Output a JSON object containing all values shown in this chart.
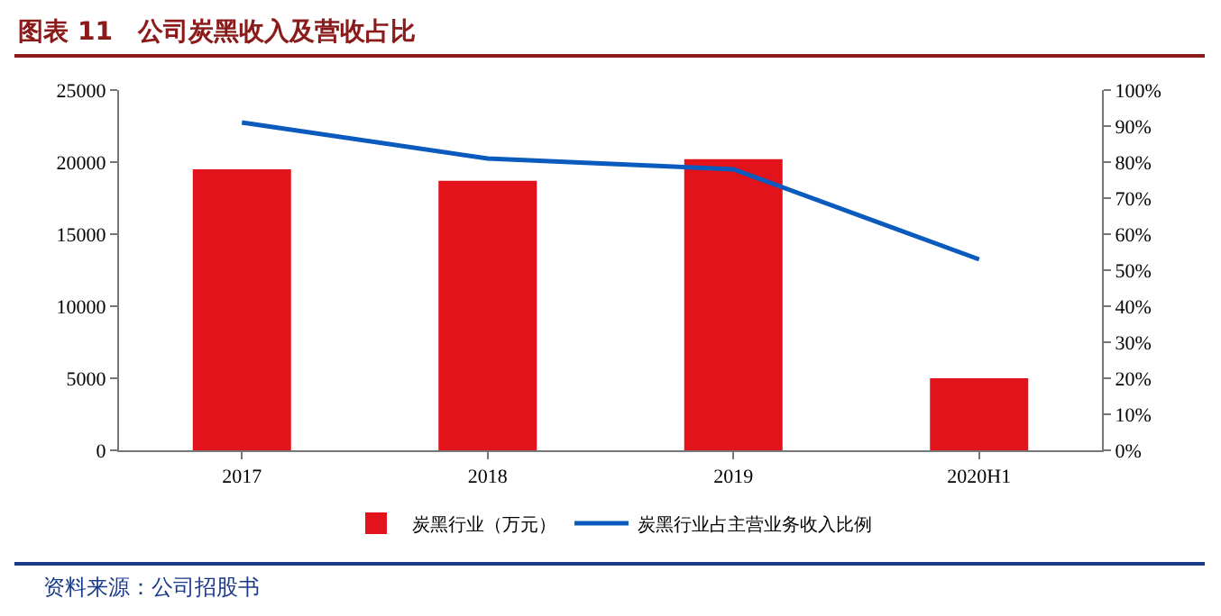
{
  "chart_data": {
    "type": "bar",
    "title": "图表 11　公司炭黑收入及营收占比",
    "categories": [
      "2017",
      "2018",
      "2019",
      "2020H1"
    ],
    "series": [
      {
        "name": "炭黑行业（万元）",
        "color": "#e3131b",
        "values": [
          19500,
          18700,
          20200,
          5000
        ]
      },
      {
        "name": "炭黑行业占主营业务收入比例",
        "type": "line",
        "axis": "y2",
        "color": "#0a5bbd",
        "values": [
          91,
          81,
          78,
          53
        ]
      }
    ],
    "ylim": [
      0,
      25000
    ],
    "yticks": [
      0,
      5000,
      10000,
      15000,
      20000,
      25000
    ],
    "y2lim": [
      0,
      100
    ],
    "y2ticks": [
      {
        "value": 0,
        "label": "0%"
      },
      {
        "value": 10,
        "label": "10%"
      },
      {
        "value": 20,
        "label": "20%"
      },
      {
        "value": 30,
        "label": "30%"
      },
      {
        "value": 40,
        "label": "40%"
      },
      {
        "value": 50,
        "label": "50%"
      },
      {
        "value": 60,
        "label": "60%"
      },
      {
        "value": 70,
        "label": "70%"
      },
      {
        "value": 80,
        "label": "80%"
      },
      {
        "value": 90,
        "label": "90%"
      },
      {
        "value": 100,
        "label": "100%"
      }
    ],
    "grid": false,
    "legend": "bottom",
    "marker": "none",
    "line_style": "solid",
    "annotations": [
      "资料来源：公司招股书"
    ]
  }
}
